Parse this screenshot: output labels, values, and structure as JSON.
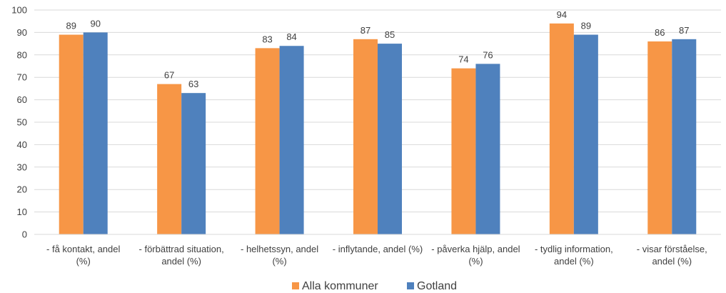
{
  "chart_data": {
    "type": "bar",
    "categories": [
      [
        "- få kontakt, andel",
        "(%)"
      ],
      [
        "- förbättrad situation,",
        "andel (%)"
      ],
      [
        "- helhetssyn, andel",
        "(%)"
      ],
      [
        "- inflytande, andel (%)"
      ],
      [
        "- påverka hjälp, andel",
        "(%)"
      ],
      [
        "- tydlig information,",
        "andel (%)"
      ],
      [
        "- visar förståelse,",
        "andel (%)"
      ]
    ],
    "series": [
      {
        "name": "Alla kommuner",
        "color": "#F79646",
        "values": [
          89,
          67,
          83,
          87,
          74,
          94,
          86
        ]
      },
      {
        "name": "Gotland",
        "color": "#4F81BD",
        "values": [
          90,
          63,
          84,
          85,
          76,
          89,
          87
        ]
      }
    ],
    "ylim": [
      0,
      100
    ],
    "yticks": [
      0,
      10,
      20,
      30,
      40,
      50,
      60,
      70,
      80,
      90,
      100
    ],
    "grid": true,
    "data_labels": true,
    "legend_position": "bottom"
  }
}
